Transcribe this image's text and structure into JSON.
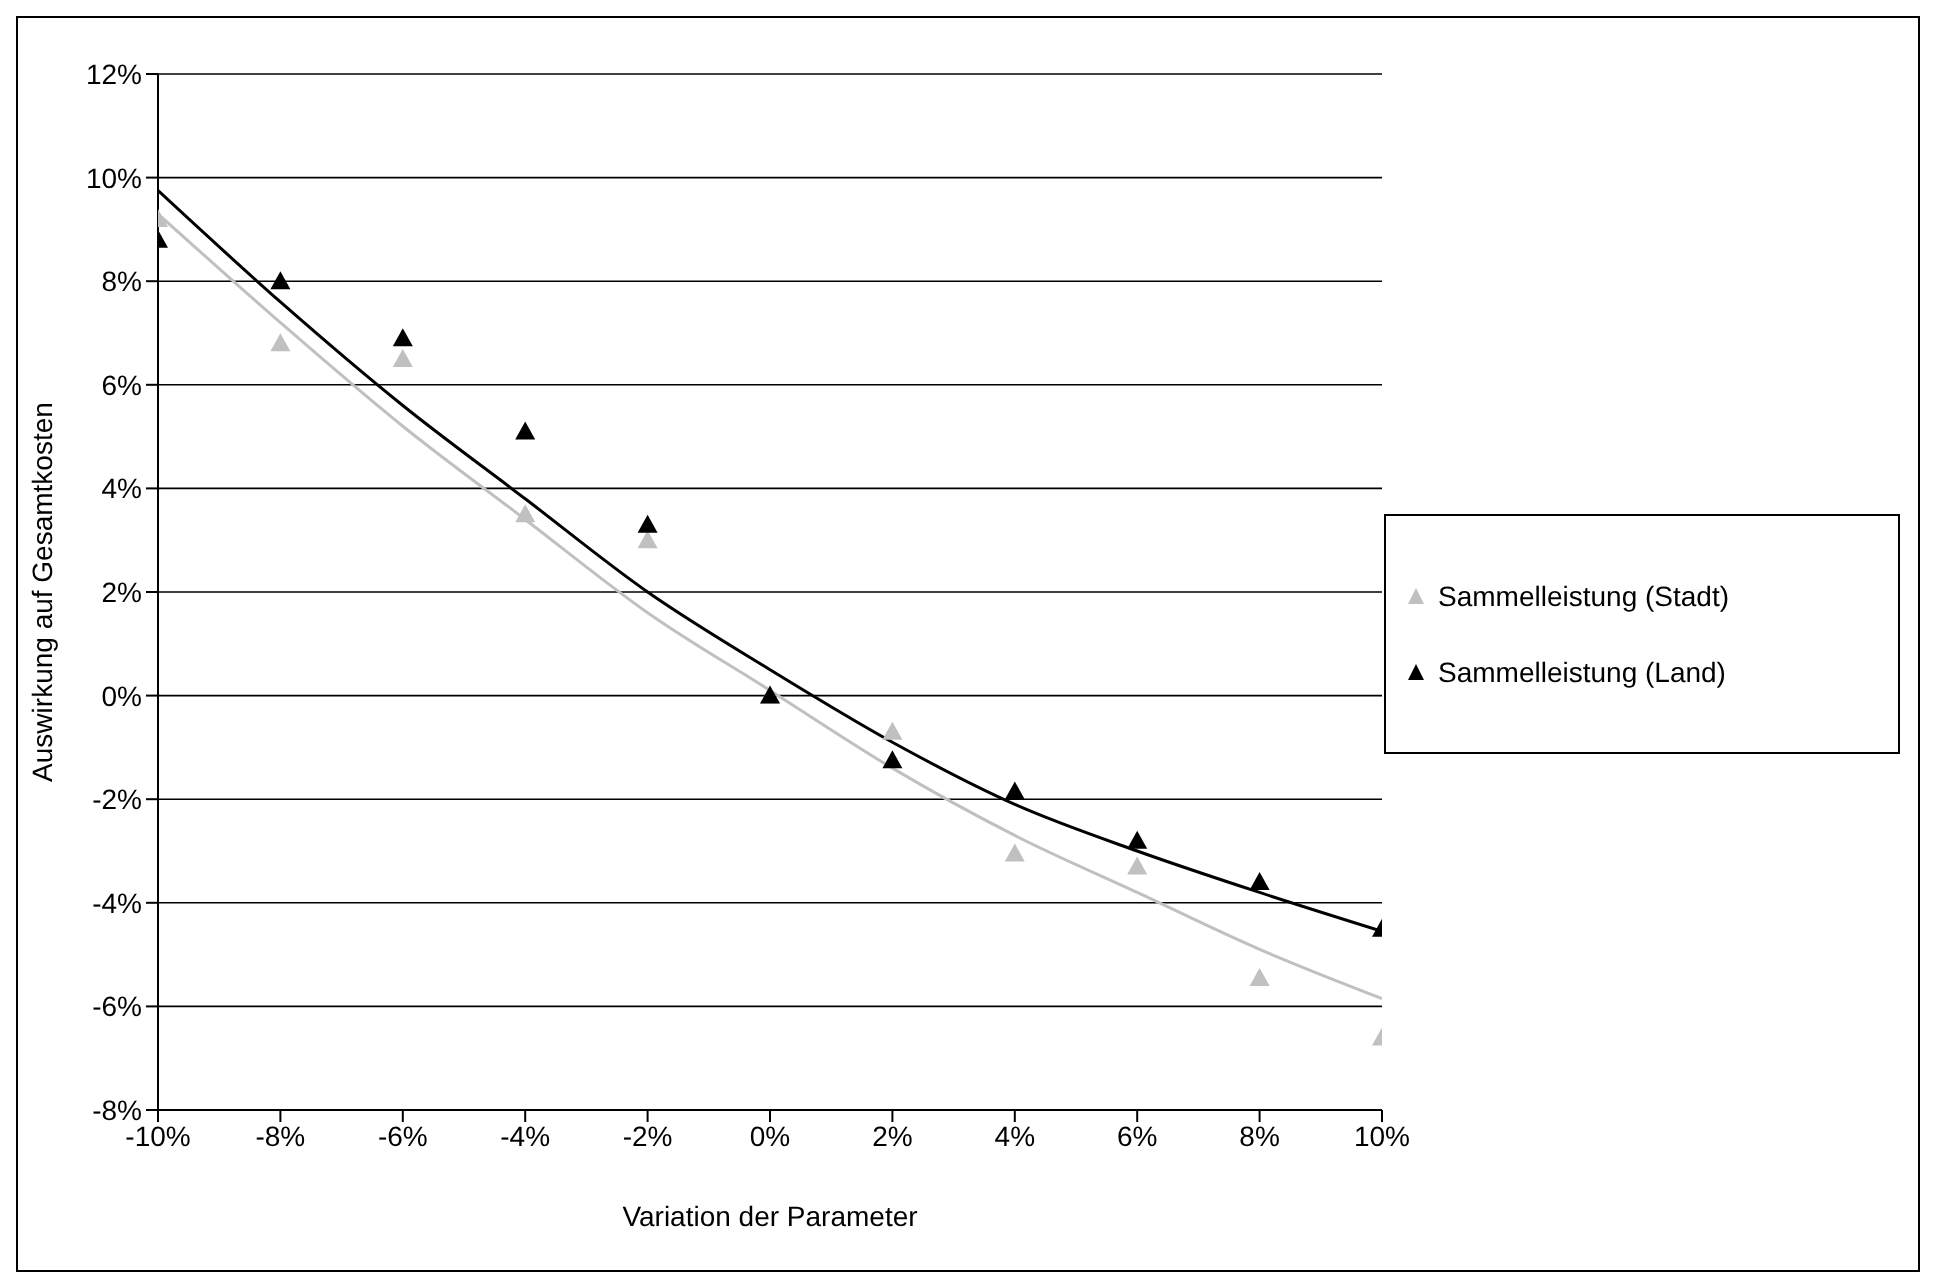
{
  "chart_data": {
    "type": "scatter",
    "xlabel": "Variation der  Parameter",
    "ylabel": "Auswirkung auf Gesamtkosten",
    "x": [
      -10,
      -8,
      -6,
      -4,
      -2,
      0,
      2,
      4,
      6,
      8,
      10
    ],
    "series": [
      {
        "name": "Sammelleistung (Stadt)",
        "color": "#c0c0c0",
        "values": [
          9.2,
          6.8,
          6.5,
          3.5,
          3.0,
          0.0,
          -0.7,
          -3.05,
          -3.3,
          -5.45,
          -6.6
        ]
      },
      {
        "name": "Sammelleistung (Land)",
        "color": "#000000",
        "values": [
          8.8,
          8.0,
          6.9,
          5.1,
          3.3,
          0.0,
          -1.25,
          -1.85,
          -2.8,
          -3.6,
          -4.5
        ]
      },
      {
        "type": "line",
        "marker": "none",
        "color": "#c0c0c0",
        "x": [
          -10,
          -8,
          -6,
          -4,
          -2,
          0,
          2,
          4,
          6,
          8,
          10
        ],
        "values": [
          9.3,
          7.2,
          5.2,
          3.4,
          1.6,
          0.1,
          -1.4,
          -2.7,
          -3.8,
          -4.9,
          -5.85
        ]
      },
      {
        "type": "line",
        "marker": "none",
        "color": "#000000",
        "x": [
          -10,
          -8,
          -6,
          -4,
          -2,
          0,
          2,
          4,
          6,
          8,
          10
        ],
        "values": [
          9.75,
          7.6,
          5.6,
          3.8,
          2.0,
          0.5,
          -0.9,
          -2.1,
          -3.0,
          -3.8,
          -4.55
        ]
      }
    ],
    "marker": "triangle",
    "line_style": "solid",
    "xlim": [
      -10,
      10
    ],
    "xticks": [
      {
        "value": -10,
        "label": "-10%"
      },
      {
        "value": -8,
        "label": "-8%"
      },
      {
        "value": -6,
        "label": "-6%"
      },
      {
        "value": -4,
        "label": "-4%"
      },
      {
        "value": -2,
        "label": "-2%"
      },
      {
        "value": 0,
        "label": "0%"
      },
      {
        "value": 2,
        "label": "2%"
      },
      {
        "value": 4,
        "label": "4%"
      },
      {
        "value": 6,
        "label": "6%"
      },
      {
        "value": 8,
        "label": "8%"
      },
      {
        "value": 10,
        "label": "10%"
      }
    ],
    "ylim": [
      -8,
      12
    ],
    "yticks": [
      {
        "value": -8,
        "label": "-8%"
      },
      {
        "value": -6,
        "label": "-6%"
      },
      {
        "value": -4,
        "label": "-4%"
      },
      {
        "value": -2,
        "label": "-2%"
      },
      {
        "value": 0,
        "label": "0%"
      },
      {
        "value": 2,
        "label": "2%"
      },
      {
        "value": 4,
        "label": "4%"
      },
      {
        "value": 6,
        "label": "6%"
      },
      {
        "value": 8,
        "label": "8%"
      },
      {
        "value": 10,
        "label": "10%"
      },
      {
        "value": 12,
        "label": "12%"
      }
    ],
    "grid": "y",
    "legend": "right"
  }
}
